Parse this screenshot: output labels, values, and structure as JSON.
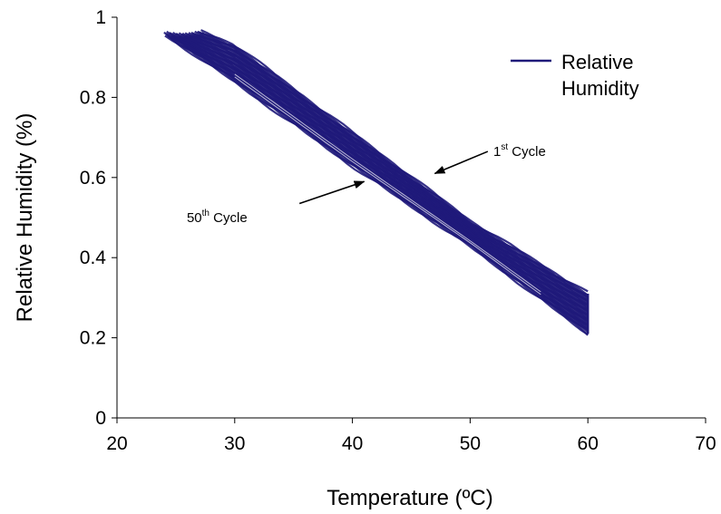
{
  "chart_data": {
    "type": "line",
    "xlabel": "Temperature (ºC)",
    "ylabel": "Relative Humidity (%)",
    "xlim": [
      20,
      70
    ],
    "ylim": [
      0,
      1
    ],
    "xticks": [
      20,
      30,
      40,
      50,
      60,
      70
    ],
    "yticks": [
      0,
      0.2,
      0.4,
      0.6,
      0.8,
      1
    ],
    "x_tick_labels": [
      "20",
      "30",
      "40",
      "50",
      "60",
      "70"
    ],
    "y_tick_labels": [
      "0",
      "0.2",
      "0.4",
      "0.6",
      "0.8",
      "1"
    ],
    "grid": false,
    "legend_position": "top-right",
    "series": [
      {
        "name": "Relative Humidity",
        "color": "#1f1a7a",
        "x": [
          24,
          27,
          30,
          35,
          40,
          45,
          50,
          55,
          60
        ],
        "y": [
          1.0,
          0.93,
          0.86,
          0.76,
          0.66,
          0.56,
          0.46,
          0.37,
          0.26
        ]
      }
    ],
    "band": {
      "x": [
        24,
        30,
        40,
        50,
        60
      ],
      "upper": [
        1.0,
        0.93,
        0.71,
        0.49,
        0.31
      ],
      "lower": [
        0.96,
        0.84,
        0.63,
        0.43,
        0.21
      ]
    },
    "legend_lines": [
      "Relative",
      "Humidity"
    ],
    "annotations": [
      {
        "base": "1",
        "sup": "st",
        "rest": " Cycle",
        "text_x": 54.2,
        "text_y": 0.665,
        "arrow_from": [
          51.5,
          0.665
        ],
        "arrow_to": [
          47.0,
          0.61
        ]
      },
      {
        "base": "50",
        "sup": "th",
        "rest": " Cycle",
        "text_x": 28.5,
        "text_y": 0.5,
        "arrow_from": [
          35.5,
          0.535
        ],
        "arrow_to": [
          41.0,
          0.59
        ]
      }
    ]
  }
}
